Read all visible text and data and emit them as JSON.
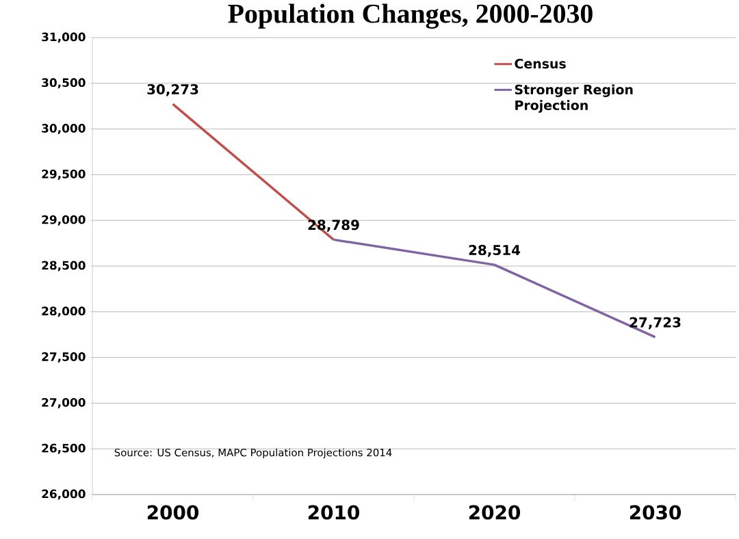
{
  "chart_data": {
    "type": "line",
    "title": "Population Changes, 2000-2030",
    "categories": [
      "2000",
      "2010",
      "2020",
      "2030"
    ],
    "series": [
      {
        "name": "Census",
        "color": "#c0504d",
        "values": [
          30273,
          28789,
          null,
          null
        ],
        "value_labels": [
          "30,273",
          "28,789",
          null,
          null
        ]
      },
      {
        "name": "Stronger Region Projection",
        "color": "#8064a2",
        "values": [
          null,
          28789,
          28514,
          27723
        ],
        "value_labels": [
          null,
          null,
          "28,514",
          "27,723"
        ]
      }
    ],
    "ylim": [
      26000,
      31000
    ],
    "yticks": [
      {
        "value": 26000,
        "label": "26,000"
      },
      {
        "value": 26500,
        "label": "26,500"
      },
      {
        "value": 27000,
        "label": "27,000"
      },
      {
        "value": 27500,
        "label": "27,500"
      },
      {
        "value": 28000,
        "label": "28,000"
      },
      {
        "value": 28500,
        "label": "28,500"
      },
      {
        "value": 29000,
        "label": "29,000"
      },
      {
        "value": 29500,
        "label": "29,500"
      },
      {
        "value": 30000,
        "label": "30,000"
      },
      {
        "value": 30500,
        "label": "30,500"
      },
      {
        "value": 31000,
        "label": "31,000"
      }
    ],
    "grid": "y",
    "legend": "top right",
    "marker": "none",
    "line_style": "solid",
    "annotations": [
      "Source: US Census, MAPC Population Projections 2014"
    ]
  }
}
